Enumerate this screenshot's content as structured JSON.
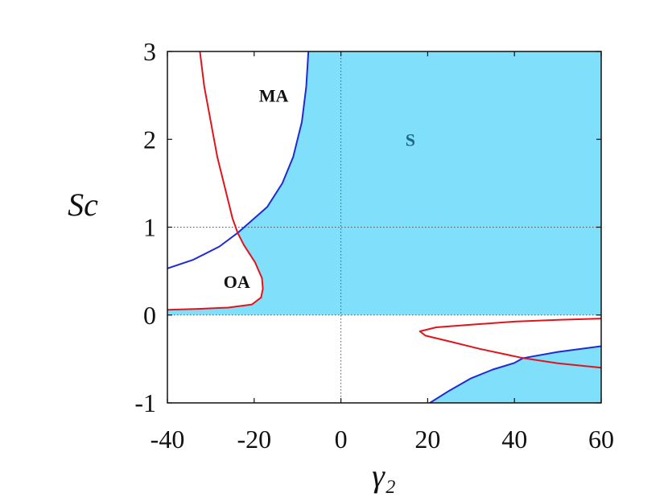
{
  "chart_data": {
    "type": "line",
    "title": "",
    "xlabel": "γ₂",
    "ylabel": "Sc",
    "xlim": [
      -40,
      60
    ],
    "ylim": [
      -1,
      3
    ],
    "xticks": [
      -40,
      -20,
      0,
      20,
      40,
      60
    ],
    "yticks": [
      -1,
      0,
      1,
      2,
      3
    ],
    "xtick_labels": [
      "-40",
      "-20",
      "0",
      "20",
      "40",
      "60"
    ],
    "ytick_labels": [
      "-1",
      "0",
      "1",
      "2",
      "3"
    ],
    "grid": false,
    "reference_lines": {
      "x": [
        0
      ],
      "y": [
        0,
        1
      ]
    },
    "colors": {
      "stable_fill": "#80dffb",
      "blue_curve": "#1d2bd6",
      "red_curve": "#e0141b",
      "reference": "#555555",
      "label_dark": "#111111",
      "label_s": "#1f6784"
    },
    "regions": [
      {
        "label": "MA",
        "x": -15.5,
        "y": 2.5
      },
      {
        "label": "OA",
        "x": -24,
        "y": 0.38
      },
      {
        "label": "S",
        "x": 16,
        "y": 2.0
      }
    ],
    "stable_region_upper": {
      "boundary": [
        [
          -7.5,
          3
        ],
        [
          -8,
          2.6
        ],
        [
          -9,
          2.2
        ],
        [
          -11,
          1.8
        ],
        [
          -13.5,
          1.5
        ],
        [
          -17,
          1.23
        ],
        [
          -22.7,
          0.98
        ],
        [
          -23.8,
          0.935
        ],
        [
          -22.4,
          0.8
        ],
        [
          -19.8,
          0.6
        ],
        [
          -18.2,
          0.42
        ],
        [
          -18,
          0.3
        ],
        [
          -18.4,
          0.2
        ],
        [
          -20.5,
          0.12
        ],
        [
          -26,
          0.085
        ],
        [
          -33,
          0.07
        ],
        [
          -40,
          0.06
        ],
        [
          -40,
          0
        ],
        [
          60,
          0
        ],
        [
          60,
          3
        ]
      ]
    },
    "stable_region_lower": {
      "boundary": [
        [
          20.5,
          -1
        ],
        [
          25,
          -0.86
        ],
        [
          30,
          -0.72
        ],
        [
          35,
          -0.62
        ],
        [
          40,
          -0.545
        ],
        [
          42,
          -0.49
        ],
        [
          50,
          -0.42
        ],
        [
          60,
          -0.355
        ],
        [
          60,
          -1
        ]
      ]
    },
    "series": [
      {
        "color": "blue",
        "points": [
          [
            -7.5,
            3
          ],
          [
            -8,
            2.6
          ],
          [
            -9,
            2.2
          ],
          [
            -11,
            1.8
          ],
          [
            -13.5,
            1.5
          ],
          [
            -17,
            1.23
          ],
          [
            -20,
            1.1
          ],
          [
            -23.8,
            0.935
          ],
          [
            -28,
            0.78
          ],
          [
            -34,
            0.63
          ],
          [
            -40,
            0.53
          ]
        ]
      },
      {
        "color": "blue",
        "points": [
          [
            20.5,
            -1
          ],
          [
            25,
            -0.86
          ],
          [
            30,
            -0.72
          ],
          [
            35,
            -0.62
          ],
          [
            40,
            -0.545
          ],
          [
            42,
            -0.49
          ],
          [
            50,
            -0.42
          ],
          [
            60,
            -0.355
          ]
        ]
      },
      {
        "color": "red",
        "points": [
          [
            -32.5,
            3
          ],
          [
            -31.5,
            2.6
          ],
          [
            -30,
            2.2
          ],
          [
            -28.5,
            1.8
          ],
          [
            -26.5,
            1.4
          ],
          [
            -25,
            1.1
          ],
          [
            -23.8,
            0.935
          ],
          [
            -22.4,
            0.8
          ],
          [
            -19.8,
            0.6
          ],
          [
            -18.2,
            0.42
          ],
          [
            -18,
            0.3
          ],
          [
            -18.4,
            0.2
          ],
          [
            -20.5,
            0.12
          ],
          [
            -26,
            0.085
          ],
          [
            -33,
            0.07
          ],
          [
            -40,
            0.06
          ]
        ]
      },
      {
        "color": "red",
        "points": [
          [
            60,
            -0.04
          ],
          [
            50,
            -0.055
          ],
          [
            40,
            -0.075
          ],
          [
            30,
            -0.11
          ],
          [
            22,
            -0.14
          ],
          [
            18.2,
            -0.185
          ],
          [
            19.5,
            -0.235
          ],
          [
            25,
            -0.3
          ],
          [
            32,
            -0.385
          ],
          [
            42,
            -0.49
          ],
          [
            50,
            -0.55
          ],
          [
            60,
            -0.6
          ]
        ]
      }
    ]
  }
}
